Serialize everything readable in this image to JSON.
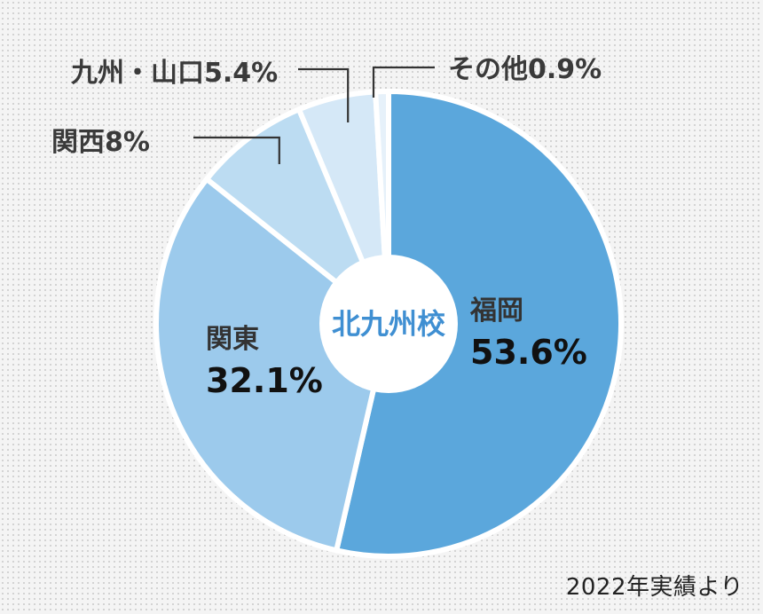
{
  "chart_data": {
    "type": "pie",
    "center_label": "北九州校",
    "slices": [
      {
        "label": "福岡",
        "value": 53.6,
        "value_label": "53.6%",
        "color": "#5ba7dc",
        "label_position": "inside"
      },
      {
        "label": "関東",
        "value": 32.1,
        "value_label": "32.1%",
        "color": "#9ccaec",
        "label_position": "inside"
      },
      {
        "label": "関西",
        "value": 8.0,
        "value_label": "8%",
        "color": "#bcdcf2",
        "label_position": "outside"
      },
      {
        "label": "九州・山口",
        "value": 5.4,
        "value_label": "5.4%",
        "color": "#d5e8f7",
        "label_position": "outside"
      },
      {
        "label": "その他",
        "value": 0.9,
        "value_label": "0.9%",
        "color": "#e6f1fa",
        "label_position": "outside"
      }
    ],
    "note": "2022年実績より"
  }
}
